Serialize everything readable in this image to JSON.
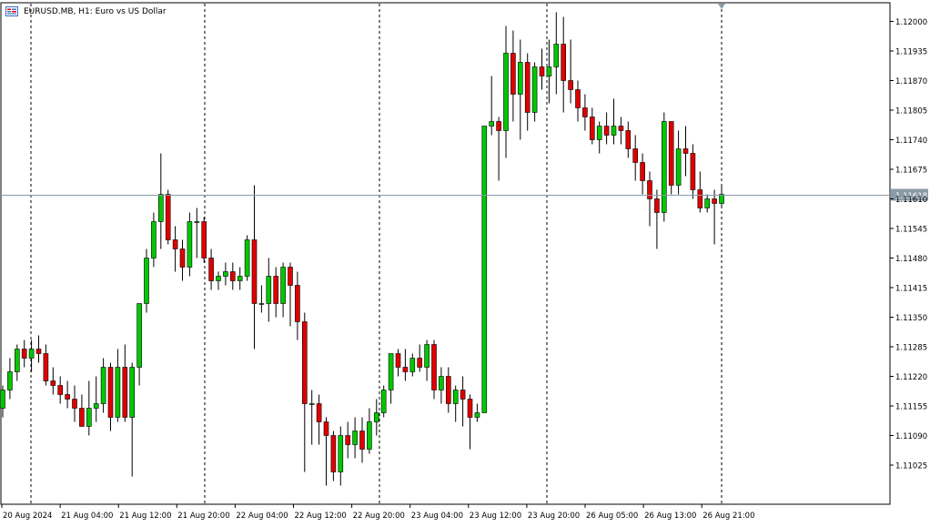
{
  "window": {
    "symbol": "EURUSD.MB",
    "timeframe": "H1",
    "description": "Euro vs US Dollar",
    "title_text": "EURUSD.MB, H1:  Euro vs US Dollar"
  },
  "colors": {
    "background": "#ffffff",
    "bull": "#00c800",
    "bear": "#e00000",
    "wick": "#000000",
    "grid_separator": "#000000",
    "price_line": "#8a9ba8",
    "price_label_bg": "#8a9ba8",
    "price_label_text": "#ffffff",
    "axis": "#000000"
  },
  "price_label": "1.11618",
  "chart_data": {
    "type": "candlestick",
    "y_ticks": [
      "1.12000",
      "1.11935",
      "1.11870",
      "1.11805",
      "1.11740",
      "1.11675",
      "1.11610",
      "1.11545",
      "1.11480",
      "1.11415",
      "1.11350",
      "1.11285",
      "1.11220",
      "1.11155",
      "1.11090",
      "1.11025"
    ],
    "x_ticks": [
      "20 Aug 2024",
      "21 Aug 04:00",
      "21 Aug 12:00",
      "21 Aug 20:00",
      "22 Aug 04:00",
      "22 Aug 12:00",
      "22 Aug 20:00",
      "23 Aug 04:00",
      "23 Aug 12:00",
      "23 Aug 20:00",
      "26 Aug 05:00",
      "26 Aug 13:00",
      "26 Aug 21:00"
    ],
    "ylim": [
      1.1097,
      1.12035
    ],
    "current_price": 1.11618,
    "candles": [
      [
        1.1115,
        1.112,
        1.1113,
        1.1119
      ],
      [
        1.1119,
        1.1126,
        1.1117,
        1.1123
      ],
      [
        1.1123,
        1.1129,
        1.1121,
        1.1128
      ],
      [
        1.1128,
        1.113,
        1.1124,
        1.1126
      ],
      [
        1.1126,
        1.113,
        1.1123,
        1.1128
      ],
      [
        1.1128,
        1.1131,
        1.1125,
        1.1127
      ],
      [
        1.1127,
        1.1129,
        1.112,
        1.1121
      ],
      [
        1.1121,
        1.1124,
        1.1118,
        1.112
      ],
      [
        1.112,
        1.1122,
        1.1116,
        1.1118
      ],
      [
        1.1118,
        1.1121,
        1.1115,
        1.1117
      ],
      [
        1.1117,
        1.112,
        1.1112,
        1.1115
      ],
      [
        1.1115,
        1.1118,
        1.1111,
        1.1111
      ],
      [
        1.1111,
        1.1121,
        1.1109,
        1.1115
      ],
      [
        1.1115,
        1.1122,
        1.1112,
        1.1116
      ],
      [
        1.1116,
        1.1126,
        1.1114,
        1.1124
      ],
      [
        1.1124,
        1.1125,
        1.111,
        1.1113
      ],
      [
        1.1113,
        1.1128,
        1.1112,
        1.1124
      ],
      [
        1.1124,
        1.1129,
        1.1112,
        1.1113
      ],
      [
        1.1113,
        1.1125,
        1.11,
        1.1124
      ],
      [
        1.1124,
        1.1138,
        1.112,
        1.1138
      ],
      [
        1.1138,
        1.115,
        1.1136,
        1.1148
      ],
      [
        1.1148,
        1.1158,
        1.1146,
        1.1156
      ],
      [
        1.1156,
        1.1171,
        1.115,
        1.1162
      ],
      [
        1.1162,
        1.1163,
        1.1151,
        1.1152
      ],
      [
        1.1152,
        1.1155,
        1.1145,
        1.115
      ],
      [
        1.115,
        1.1152,
        1.1143,
        1.1146
      ],
      [
        1.1146,
        1.1158,
        1.1144,
        1.1156
      ],
      [
        1.1156,
        1.1159,
        1.1148,
        1.1156
      ],
      [
        1.1156,
        1.1157,
        1.1147,
        1.1148
      ],
      [
        1.1148,
        1.115,
        1.1141,
        1.1143
      ],
      [
        1.1143,
        1.1145,
        1.1141,
        1.1144
      ],
      [
        1.1144,
        1.1147,
        1.1142,
        1.1145
      ],
      [
        1.1145,
        1.1147,
        1.1141,
        1.1143
      ],
      [
        1.1143,
        1.1146,
        1.1141,
        1.1144
      ],
      [
        1.1144,
        1.1153,
        1.1143,
        1.1152
      ],
      [
        1.1152,
        1.1164,
        1.1128,
        1.1138
      ],
      [
        1.1138,
        1.1142,
        1.1136,
        1.1138
      ],
      [
        1.1138,
        1.1148,
        1.1134,
        1.1144
      ],
      [
        1.1144,
        1.1146,
        1.1135,
        1.1138
      ],
      [
        1.1138,
        1.1147,
        1.1135,
        1.1146
      ],
      [
        1.1146,
        1.1147,
        1.1133,
        1.1142
      ],
      [
        1.1142,
        1.1145,
        1.113,
        1.1134
      ],
      [
        1.1134,
        1.1136,
        1.1101,
        1.1116
      ],
      [
        1.1116,
        1.1119,
        1.1107,
        1.1116
      ],
      [
        1.1116,
        1.1118,
        1.1107,
        1.1112
      ],
      [
        1.1112,
        1.1113,
        1.1098,
        1.1109
      ],
      [
        1.1109,
        1.111,
        1.1099,
        1.1101
      ],
      [
        1.1101,
        1.1111,
        1.1098,
        1.1109
      ],
      [
        1.1109,
        1.1112,
        1.1104,
        1.1107
      ],
      [
        1.1107,
        1.1113,
        1.1104,
        1.111
      ],
      [
        1.111,
        1.1113,
        1.1103,
        1.1106
      ],
      [
        1.1106,
        1.1115,
        1.1105,
        1.1112
      ],
      [
        1.1112,
        1.1117,
        1.1109,
        1.1114
      ],
      [
        1.1114,
        1.112,
        1.1113,
        1.1119
      ],
      [
        1.1119,
        1.1127,
        1.1116,
        1.1127
      ],
      [
        1.1127,
        1.1128,
        1.1122,
        1.1124
      ],
      [
        1.1124,
        1.1128,
        1.1121,
        1.1123
      ],
      [
        1.1123,
        1.1127,
        1.1122,
        1.1126
      ],
      [
        1.1126,
        1.1129,
        1.1123,
        1.1124
      ],
      [
        1.1124,
        1.113,
        1.1121,
        1.1129
      ],
      [
        1.1129,
        1.113,
        1.1117,
        1.1119
      ],
      [
        1.1119,
        1.1124,
        1.1116,
        1.1122
      ],
      [
        1.1122,
        1.1124,
        1.1114,
        1.1116
      ],
      [
        1.1116,
        1.112,
        1.1112,
        1.1119
      ],
      [
        1.1119,
        1.1122,
        1.1111,
        1.1117
      ],
      [
        1.1117,
        1.1118,
        1.1106,
        1.1113
      ],
      [
        1.1113,
        1.1116,
        1.1112,
        1.1114
      ],
      [
        1.1114,
        1.1177,
        1.1114,
        1.1177
      ],
      [
        1.1177,
        1.1188,
        1.1175,
        1.1178
      ],
      [
        1.1178,
        1.1179,
        1.1165,
        1.1176
      ],
      [
        1.1176,
        1.1199,
        1.117,
        1.1193
      ],
      [
        1.1193,
        1.1198,
        1.1178,
        1.1184
      ],
      [
        1.1184,
        1.1196,
        1.1174,
        1.1191
      ],
      [
        1.1191,
        1.1193,
        1.1176,
        1.118
      ],
      [
        1.118,
        1.1191,
        1.1178,
        1.119
      ],
      [
        1.119,
        1.1194,
        1.1185,
        1.1188
      ],
      [
        1.1188,
        1.1196,
        1.1182,
        1.119
      ],
      [
        1.119,
        1.1202,
        1.1184,
        1.1195
      ],
      [
        1.1195,
        1.1201,
        1.118,
        1.1187
      ],
      [
        1.1187,
        1.1196,
        1.1182,
        1.1185
      ],
      [
        1.1185,
        1.1187,
        1.1178,
        1.1181
      ],
      [
        1.1181,
        1.1184,
        1.1176,
        1.1179
      ],
      [
        1.1179,
        1.1181,
        1.1173,
        1.1174
      ],
      [
        1.1174,
        1.1178,
        1.1171,
        1.1177
      ],
      [
        1.1177,
        1.118,
        1.1173,
        1.1175
      ],
      [
        1.1175,
        1.1183,
        1.1173,
        1.1177
      ],
      [
        1.1177,
        1.1179,
        1.1173,
        1.1176
      ],
      [
        1.1176,
        1.1178,
        1.117,
        1.1172
      ],
      [
        1.1172,
        1.1175,
        1.1165,
        1.1169
      ],
      [
        1.1169,
        1.1171,
        1.1162,
        1.1165
      ],
      [
        1.1165,
        1.1167,
        1.1155,
        1.1161
      ],
      [
        1.1161,
        1.1163,
        1.115,
        1.1158
      ],
      [
        1.1158,
        1.118,
        1.1156,
        1.1178
      ],
      [
        1.1178,
        1.1178,
        1.1162,
        1.1164
      ],
      [
        1.1164,
        1.1176,
        1.1162,
        1.1172
      ],
      [
        1.1172,
        1.1177,
        1.1166,
        1.1171
      ],
      [
        1.1171,
        1.1173,
        1.1161,
        1.1163
      ],
      [
        1.1163,
        1.1167,
        1.1158,
        1.1159
      ],
      [
        1.1159,
        1.1162,
        1.1158,
        1.1161
      ],
      [
        1.1161,
        1.1163,
        1.1151,
        1.116
      ],
      [
        1.116,
        1.1164,
        1.1159,
        1.1162
      ]
    ]
  }
}
